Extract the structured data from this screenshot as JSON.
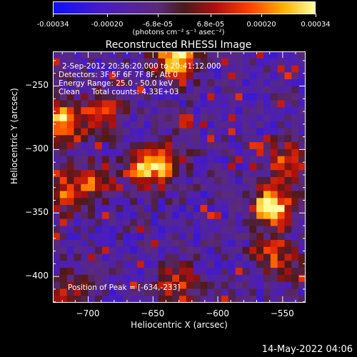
{
  "chart_data": {
    "type": "heatmap",
    "title": "Reconstructed RHESSI Image",
    "xlabel": "Heliocentric X (arcsec)",
    "ylabel": "Heliocentric Y (arcsec)",
    "x_ticks": [
      -700,
      -650,
      -600,
      -550
    ],
    "y_ticks": [
      -250,
      -300,
      -350,
      -400
    ],
    "xlim": [
      -727,
      -532
    ],
    "ylim": [
      -421,
      -223
    ],
    "colorbar": {
      "ticks": [
        "-0.00034",
        "-0.00020",
        "-6.8e-05",
        "6.8e-05",
        "0.00020",
        "0.00034"
      ],
      "units": "(photons cm⁻² s⁻¹ asec⁻²)",
      "range": [
        -0.00034,
        0.00034
      ]
    },
    "annotations": [
      "2-Sep-2012 20:36:20.000 to 20:41:12.000",
      "Detectors: 3F 5F 6F 7F 8F, Att 0",
      "Energy Range: 25.0 - 50.0 keV",
      "Clean     Total counts: 4.33E+03"
    ],
    "peak_label": "Position of Peak = [-634,-233]",
    "peak_position": [
      -634,
      -233
    ],
    "sources": [
      {
        "x": -720,
        "y": -280,
        "intensity": 0.9
      },
      {
        "x": -718,
        "y": -335,
        "intensity": 0.55
      },
      {
        "x": -690,
        "y": -270,
        "intensity": 0.6
      },
      {
        "x": -695,
        "y": -325,
        "intensity": 0.55
      },
      {
        "x": -655,
        "y": -315,
        "intensity": 0.7
      },
      {
        "x": -632,
        "y": -228,
        "intensity": 1.0
      },
      {
        "x": -640,
        "y": -310,
        "intensity": 0.45
      },
      {
        "x": -558,
        "y": -345,
        "intensity": 1.0
      },
      {
        "x": -545,
        "y": -310,
        "intensity": 0.6
      },
      {
        "x": -555,
        "y": -385,
        "intensity": 0.55
      },
      {
        "x": -630,
        "y": -405,
        "intensity": 0.55
      },
      {
        "x": -715,
        "y": -410,
        "intensity": 0.4
      }
    ]
  },
  "footer": {
    "date": "14-May-2022 04:06"
  }
}
